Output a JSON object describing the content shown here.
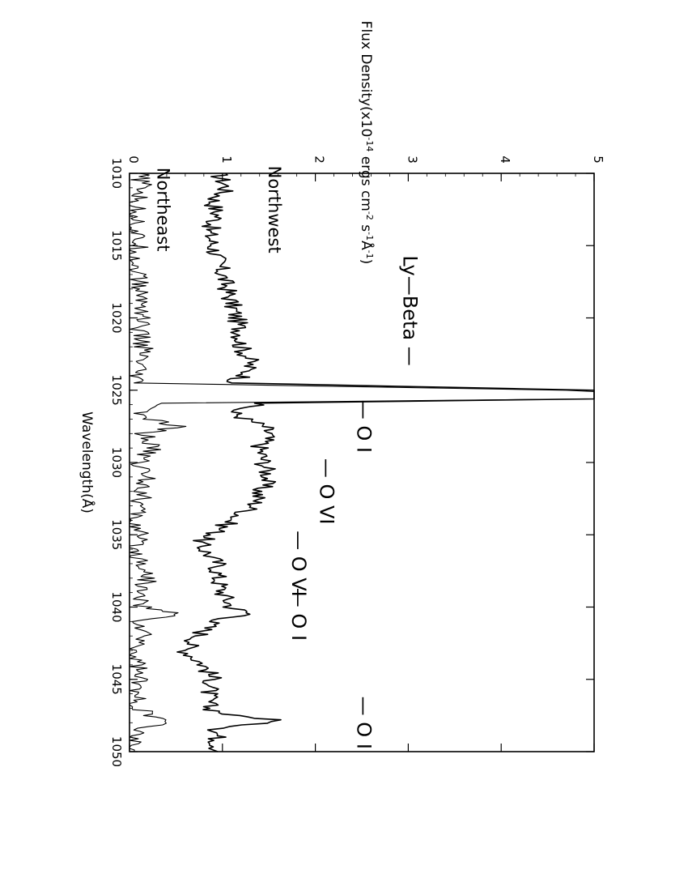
{
  "chart_data": {
    "type": "line",
    "orientation": "rotated-90-clockwise",
    "xlabel": "Wavelength(Å)",
    "ylabel_parts": [
      "Flux Density(x10",
      "-14",
      " ergs cm",
      "-2",
      " s",
      "-1",
      "Å",
      "-1",
      ")"
    ],
    "xlim": [
      1010,
      1050
    ],
    "ylim": [
      0,
      5
    ],
    "x_ticks": [
      "1010",
      "1015",
      "1020",
      "1025",
      "1030",
      "1035",
      "1040",
      "1045",
      "1050"
    ],
    "y_ticks": [
      "0",
      "1",
      "2",
      "3",
      "4",
      "5"
    ],
    "x_tick_values": [
      1010,
      1015,
      1020,
      1025,
      1030,
      1035,
      1040,
      1045,
      1050
    ],
    "y_tick_values": [
      0,
      1,
      2,
      3,
      4,
      5
    ],
    "grid": false,
    "series": [
      {
        "name": "Northwest",
        "x": [
          1010,
          1011,
          1012,
          1013,
          1014,
          1015,
          1016,
          1017,
          1018,
          1019,
          1020,
          1021,
          1022,
          1023,
          1024,
          1024.5,
          1025.0,
          1025.1,
          1025.3,
          1025.6,
          1025.9,
          1026.5,
          1027,
          1027.5,
          1028,
          1029,
          1030,
          1031,
          1032,
          1033,
          1034,
          1035,
          1035.5,
          1036,
          1037,
          1038,
          1039,
          1040,
          1040.5,
          1041,
          1042,
          1043,
          1044,
          1045,
          1046,
          1047,
          1047.5,
          1047.8,
          1048.5,
          1049,
          1050
        ],
        "y": [
          0.95,
          1.05,
          0.9,
          0.95,
          0.85,
          0.9,
          0.95,
          1.0,
          1.05,
          1.1,
          1.15,
          1.2,
          1.2,
          1.3,
          1.25,
          1.1,
          5.0,
          5.0,
          5.0,
          5.0,
          1.4,
          1.1,
          1.25,
          1.45,
          1.5,
          1.4,
          1.45,
          1.5,
          1.4,
          1.35,
          1.1,
          0.9,
          0.75,
          0.8,
          0.95,
          0.95,
          1.0,
          1.1,
          1.3,
          0.9,
          0.75,
          0.6,
          0.8,
          0.9,
          0.85,
          0.85,
          1.1,
          1.6,
          0.95,
          0.95,
          0.95
        ]
      },
      {
        "name": "Northeast",
        "x": [
          1010,
          1011,
          1012,
          1013,
          1014,
          1015,
          1016,
          1017,
          1018,
          1019,
          1020,
          1021,
          1022,
          1023,
          1024,
          1024.5,
          1025.0,
          1025.1,
          1025.3,
          1025.6,
          1025.9,
          1026.5,
          1027,
          1027.5,
          1028,
          1029,
          1030,
          1031,
          1032,
          1033,
          1034,
          1035,
          1036,
          1037,
          1038,
          1039,
          1040,
          1040.5,
          1041,
          1042,
          1043,
          1044,
          1045,
          1046,
          1047,
          1047.5,
          1047.8,
          1048.5,
          1049,
          1050
        ],
        "y": [
          0.1,
          0.15,
          0.05,
          0.1,
          0.05,
          0.1,
          0.05,
          0.1,
          0.1,
          0.15,
          0.15,
          0.1,
          0.15,
          0.1,
          0.05,
          0.05,
          4.7,
          5.0,
          5.0,
          5.0,
          0.4,
          0.1,
          0.2,
          0.5,
          0.15,
          0.25,
          0.1,
          0.2,
          0.15,
          0.1,
          0.05,
          0.1,
          0.05,
          0.15,
          0.2,
          0.1,
          0.15,
          0.5,
          0.1,
          0.15,
          0.05,
          0.1,
          0.1,
          0.05,
          0.1,
          0.2,
          0.4,
          0.1,
          0.05,
          0.05
        ]
      }
    ],
    "series_labels": [
      {
        "text": "Northwest",
        "x": 1012.5,
        "y": 1.5
      },
      {
        "text": "Northeast",
        "x": 1012.5,
        "y": 0.3
      }
    ],
    "annotations": [
      {
        "text": "Ly—Beta —",
        "x": 1019.5,
        "y": 2.95
      },
      {
        "text": "— O I",
        "x": 1027.5,
        "y": 2.45
      },
      {
        "text": "— O VI",
        "x": 1032.0,
        "y": 2.05
      },
      {
        "text": "— O VI",
        "x": 1037.0,
        "y": 1.75
      },
      {
        "text": "— O I",
        "x": 1040.5,
        "y": 1.75
      },
      {
        "text": "— O I",
        "x": 1048.0,
        "y": 2.45
      }
    ]
  }
}
